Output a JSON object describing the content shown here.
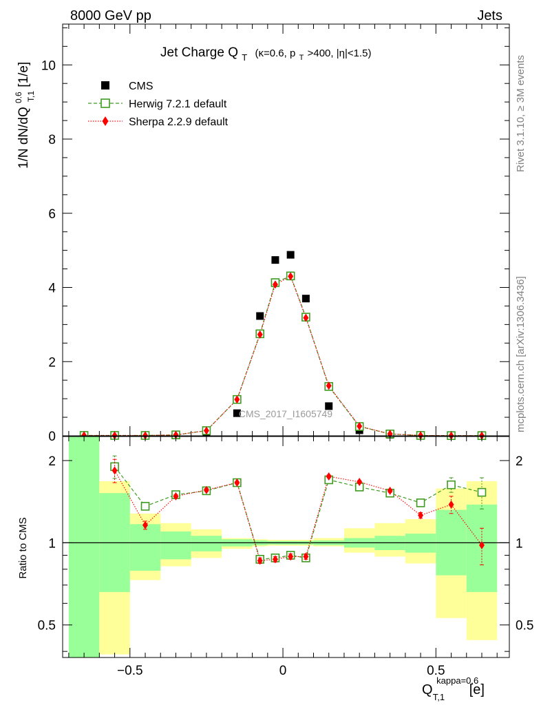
{
  "header": {
    "left": "8000 GeV pp",
    "right": "Jets"
  },
  "side_labels": {
    "rivet": "Rivet 3.1.10, ≥ 3M events",
    "mcplots": "mcplots.cern.ch [arXiv:1306.3436]"
  },
  "watermark": "CMS_2017_I1605749",
  "colors": {
    "cms": "#000000",
    "herwig": "#3d9a1e",
    "sherpa": "#ff0000",
    "band_green": "#99ff99",
    "band_yellow": "#ffff99"
  },
  "chart_data": [
    {
      "type": "scatter",
      "title": "Jet Charge Q_T (κ=0.6, p_T>400, |η|<1.5)",
      "title_parts": {
        "main": "Jet Charge Q",
        "main_sub": "T",
        "cut_open": "(κ=0.6, p",
        "cut_pt_sub": "T",
        "cut_rest": ">400, |η|<1.5)"
      },
      "ylabel_parts": {
        "pre": "1/N dN/dQ",
        "sup": "0.6",
        "sub": "T,1",
        "post": " [1/e]"
      },
      "xlim": [
        -0.72,
        0.74
      ],
      "ylim": [
        0,
        11.1
      ],
      "yticks": [
        0,
        2,
        4,
        6,
        8,
        10
      ],
      "legend_position": "top-left",
      "series": [
        {
          "name": "CMS",
          "marker": "filled-square",
          "x": [
            -0.65,
            -0.55,
            -0.45,
            -0.35,
            -0.25,
            -0.15,
            -0.075,
            -0.025,
            0.025,
            0.075,
            0.15,
            0.25,
            0.35,
            0.45,
            0.55,
            0.65
          ],
          "y": [
            0.003,
            0.003,
            0.004,
            0.01,
            0.09,
            0.61,
            3.23,
            4.74,
            4.88,
            3.7,
            0.8,
            0.15,
            0.03,
            0.006,
            0.002,
            0.002
          ]
        },
        {
          "name": "Herwig 7.2.1 default",
          "marker": "open-square",
          "line": "dashed",
          "x": [
            -0.65,
            -0.55,
            -0.45,
            -0.35,
            -0.25,
            -0.15,
            -0.075,
            -0.025,
            0.025,
            0.075,
            0.15,
            0.25,
            0.35,
            0.45,
            0.55,
            0.65
          ],
          "y": [
            0.01,
            0.01,
            0.01,
            0.025,
            0.14,
            0.98,
            2.75,
            4.13,
            4.31,
            3.2,
            1.33,
            0.25,
            0.05,
            0.01,
            0.005,
            0.005
          ]
        },
        {
          "name": "Sherpa 2.2.9 default",
          "marker": "filled-diamond",
          "line": "dotted",
          "x": [
            -0.65,
            -0.55,
            -0.45,
            -0.35,
            -0.25,
            -0.15,
            -0.075,
            -0.025,
            0.025,
            0.075,
            0.15,
            0.25,
            0.35,
            0.45,
            0.55,
            0.65
          ],
          "y": [
            0.01,
            0.01,
            0.01,
            0.025,
            0.14,
            0.98,
            2.73,
            4.08,
            4.3,
            3.18,
            1.35,
            0.26,
            0.05,
            0.01,
            0.005,
            0.005
          ]
        }
      ]
    },
    {
      "type": "scatter",
      "ylabel": "Ratio to CMS",
      "xlabel_parts": {
        "pre": "Q",
        "sup": "kappa=0.6",
        "sub": "T,1",
        "post": " [e]"
      },
      "xlim": [
        -0.72,
        0.74
      ],
      "ylim": [
        0.38,
        2.45
      ],
      "yscale": "log",
      "xticks": [
        -0.5,
        0,
        0.5
      ],
      "xtick_labels": [
        "−0.5",
        "0",
        "0.5"
      ],
      "yticks": [
        0.5,
        1,
        2
      ],
      "ytick_labels": [
        "0.5",
        "1",
        "2"
      ],
      "bands": {
        "edges": [
          -0.7,
          -0.6,
          -0.5,
          -0.4,
          -0.3,
          -0.2,
          -0.1,
          -0.05,
          0,
          0.05,
          0.1,
          0.2,
          0.3,
          0.4,
          0.5,
          0.6,
          0.7
        ],
        "green_lo": [
          0.38,
          0.66,
          0.79,
          0.87,
          0.93,
          0.97,
          0.98,
          0.985,
          0.985,
          0.985,
          0.98,
          0.96,
          0.94,
          0.92,
          0.76,
          0.66
        ],
        "green_hi": [
          2.6,
          1.52,
          1.17,
          1.1,
          1.06,
          1.03,
          1.02,
          1.015,
          1.015,
          1.015,
          1.02,
          1.04,
          1.06,
          1.08,
          1.32,
          1.38
        ],
        "yellow_lo": [
          0.38,
          0.39,
          0.73,
          0.82,
          0.88,
          0.95,
          0.97,
          0.975,
          0.975,
          0.975,
          0.97,
          0.92,
          0.89,
          0.84,
          0.53,
          0.44
        ],
        "yellow_hi": [
          2.6,
          1.68,
          1.28,
          1.18,
          1.12,
          1.04,
          1.03,
          1.025,
          1.025,
          1.025,
          1.04,
          1.13,
          1.18,
          1.22,
          1.58,
          1.68
        ]
      },
      "series": [
        {
          "name": "Herwig 7.2.1 default",
          "x": [
            -0.55,
            -0.45,
            -0.35,
            -0.25,
            -0.15,
            -0.075,
            -0.025,
            0.025,
            0.075,
            0.15,
            0.25,
            0.35,
            0.45,
            0.55,
            0.65
          ],
          "y": [
            1.9,
            1.36,
            1.5,
            1.55,
            1.66,
            0.87,
            0.88,
            0.9,
            0.88,
            1.7,
            1.6,
            1.52,
            1.4,
            1.63,
            1.53
          ],
          "yerr": [
            0.18,
            0.03,
            0.02,
            0.02,
            0.02,
            0.02,
            0.02,
            0.02,
            0.02,
            0.02,
            0.02,
            0.02,
            0.03,
            0.1,
            0.2
          ]
        },
        {
          "name": "Sherpa 2.2.9 default",
          "x": [
            -0.55,
            -0.45,
            -0.35,
            -0.25,
            -0.15,
            -0.075,
            -0.025,
            0.025,
            0.075,
            0.15,
            0.25,
            0.35,
            0.45,
            0.55,
            0.65
          ],
          "y": [
            1.84,
            1.16,
            1.48,
            1.56,
            1.66,
            0.86,
            0.87,
            0.89,
            0.89,
            1.75,
            1.67,
            1.55,
            1.26,
            1.38,
            0.98
          ],
          "yerr": [
            0.18,
            0.04,
            0.02,
            0.02,
            0.02,
            0.02,
            0.02,
            0.02,
            0.02,
            0.02,
            0.02,
            0.02,
            0.03,
            0.1,
            0.15
          ]
        }
      ]
    }
  ]
}
